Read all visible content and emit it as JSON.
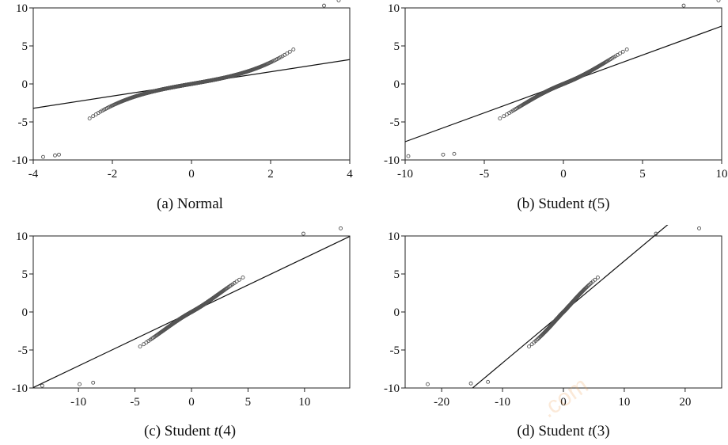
{
  "watermark": ".com",
  "chart_data": [
    {
      "type": "scatter",
      "caption_prefix": "(a)  Normal",
      "caption_t": "",
      "caption_suffix": "",
      "xlim": [
        -4,
        4
      ],
      "ylim": [
        -10,
        10
      ],
      "xticks": [
        -4,
        -2,
        0,
        2,
        4
      ],
      "yticks": [
        -10,
        -5,
        0,
        5,
        10
      ],
      "grid": false,
      "dist": "normal",
      "ref_line": {
        "slope": 0.8,
        "intercept": 0
      },
      "tail_points": [
        [
          -3.75,
          -9.6
        ],
        [
          -3.45,
          -9.4
        ],
        [
          -3.35,
          -9.3
        ],
        [
          3.35,
          10.3
        ],
        [
          3.72,
          11.0
        ]
      ]
    },
    {
      "type": "scatter",
      "caption_prefix": "(b)  Student ",
      "caption_t": "t",
      "caption_suffix": "(5)",
      "xlim": [
        -10,
        10
      ],
      "ylim": [
        -10,
        10
      ],
      "xticks": [
        -10,
        -5,
        0,
        5,
        10
      ],
      "yticks": [
        -10,
        -5,
        0,
        5,
        10
      ],
      "grid": false,
      "dist": "t5",
      "ref_line": {
        "slope": 0.76,
        "intercept": 0
      },
      "tail_points": [
        [
          -9.8,
          -9.5
        ],
        [
          -7.6,
          -9.3
        ],
        [
          -6.9,
          -9.2
        ],
        [
          7.6,
          10.3
        ],
        [
          9.8,
          11.0
        ]
      ]
    },
    {
      "type": "scatter",
      "caption_prefix": "(c)  Student ",
      "caption_t": "t",
      "caption_suffix": "(4)",
      "xlim": [
        -14,
        14
      ],
      "ylim": [
        -10,
        10
      ],
      "xticks": [
        -10,
        -5,
        0,
        5,
        10
      ],
      "yticks": [
        -10,
        -5,
        0,
        5,
        10
      ],
      "grid": false,
      "dist": "t4",
      "ref_line": {
        "slope": 0.71,
        "intercept": 0
      },
      "tail_points": [
        [
          -13.2,
          -9.7
        ],
        [
          -9.9,
          -9.5
        ],
        [
          -8.7,
          -9.3
        ],
        [
          9.9,
          10.3
        ],
        [
          13.2,
          11.0
        ]
      ]
    },
    {
      "type": "scatter",
      "caption_prefix": "(d)  Student ",
      "caption_t": "t",
      "caption_suffix": "(3)",
      "xlim": [
        -26,
        26
      ],
      "ylim": [
        -10,
        10
      ],
      "xticks": [
        -20,
        -10,
        0,
        10,
        20
      ],
      "yticks": [
        -10,
        -5,
        0,
        5,
        10
      ],
      "grid": false,
      "dist": "t3",
      "ref_line": {
        "slope": 0.67,
        "intercept": 0
      },
      "tail_points": [
        [
          -22.3,
          -9.5
        ],
        [
          -15.2,
          -9.4
        ],
        [
          -12.4,
          -9.2
        ],
        [
          15.2,
          10.3
        ],
        [
          22.3,
          11.0
        ]
      ]
    }
  ]
}
